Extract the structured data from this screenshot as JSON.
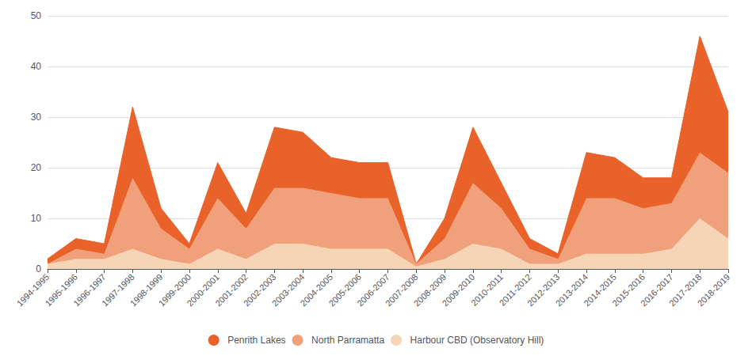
{
  "chart_data": {
    "type": "area",
    "categories": [
      "1994-1995",
      "1995-1996",
      "1996-1997",
      "1997-1998",
      "1998-1999",
      "1999-2000",
      "2000-2001",
      "2001-2002",
      "2002-2003",
      "2003-2004",
      "2004-2005",
      "2005-2006",
      "2006-2007",
      "2007-2008",
      "2008-2009",
      "2009-2010",
      "2010-2011",
      "2011-2012",
      "2012-2013",
      "2013-2014",
      "2014-2015",
      "2015-2016",
      "2016-2017",
      "2017-2018",
      "2018-2019"
    ],
    "series": [
      {
        "name": "Penrith Lakes",
        "color": "#E8622A",
        "values": [
          2,
          6,
          5,
          32,
          12,
          5,
          21,
          11,
          28,
          27,
          22,
          21,
          21,
          1,
          10,
          28,
          17,
          6,
          3,
          23,
          22,
          18,
          18,
          46,
          31
        ]
      },
      {
        "name": "North Parramatta",
        "color": "#F0A07A",
        "values": [
          1,
          4,
          3,
          18,
          8,
          4,
          14,
          8,
          16,
          16,
          15,
          14,
          14,
          1,
          6,
          17,
          12,
          4,
          2,
          14,
          14,
          12,
          13,
          23,
          19
        ]
      },
      {
        "name": "Harbour CBD (Observatory Hill)",
        "color": "#F5D5B5",
        "values": [
          1,
          2,
          2,
          4,
          2,
          1,
          4,
          2,
          5,
          5,
          4,
          4,
          4,
          0.5,
          2,
          5,
          4,
          1,
          1,
          3,
          3,
          3,
          4,
          10,
          6
        ]
      }
    ],
    "stacked": false,
    "ylim": [
      0,
      50
    ],
    "yticks": [
      0,
      10,
      20,
      30,
      40,
      50
    ],
    "grid": true,
    "legend": "bottom"
  }
}
